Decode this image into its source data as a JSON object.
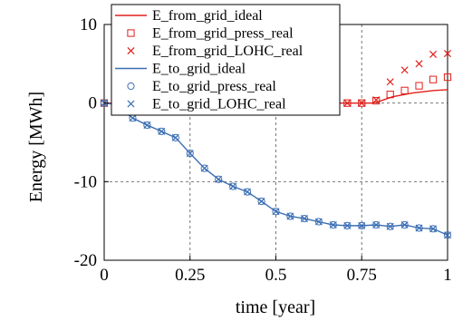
{
  "chart_data": {
    "type": "line",
    "xlabel": "time [year]",
    "ylabel": "Energy [MWh]",
    "xlim": [
      0,
      1
    ],
    "ylim": [
      -20,
      10
    ],
    "xticks": [
      0,
      0.25,
      0.5,
      0.75,
      1
    ],
    "xtick_labels": [
      "0",
      "0.25",
      "0.5",
      "0.75",
      "1"
    ],
    "yticks": [
      -20,
      -10,
      0,
      10
    ],
    "ytick_labels": [
      "-20",
      "-10",
      "0",
      "10"
    ],
    "grid": "dashed at x=0.25,0.5,0.75 and y=-10,0",
    "legend_position": "top-left",
    "colors": {
      "from_grid": "#e0201b",
      "to_grid": "#3c6fb4"
    },
    "series": [
      {
        "name": "E_from_grid_ideal",
        "style": "line",
        "color": "#e0201b",
        "x": [
          0,
          0.1,
          0.2,
          0.3,
          0.4,
          0.5,
          0.6,
          0.7,
          0.78,
          0.8,
          0.84,
          0.9,
          0.96,
          1.0
        ],
        "y": [
          0,
          0,
          0,
          0,
          0,
          0,
          0,
          0,
          0,
          0.2,
          0.8,
          1.3,
          1.6,
          1.7
        ]
      },
      {
        "name": "E_from_grid_press_real",
        "style": "open-square",
        "color": "#e0201b",
        "x": [
          0,
          0.042,
          0.083,
          0.125,
          0.167,
          0.208,
          0.25,
          0.292,
          0.333,
          0.375,
          0.417,
          0.458,
          0.5,
          0.542,
          0.583,
          0.625,
          0.667,
          0.708,
          0.75,
          0.792,
          0.833,
          0.875,
          0.917,
          0.958,
          1.0
        ],
        "y": [
          0,
          0,
          0,
          0,
          0,
          0,
          0,
          0,
          0,
          0,
          0,
          0,
          0,
          0,
          0,
          0,
          0,
          0,
          0,
          0.3,
          1.1,
          1.6,
          2.2,
          3.0,
          3.3
        ]
      },
      {
        "name": "E_from_grid_LOHC_real",
        "style": "x",
        "color": "#e0201b",
        "x": [
          0,
          0.042,
          0.083,
          0.125,
          0.167,
          0.208,
          0.25,
          0.292,
          0.333,
          0.375,
          0.417,
          0.458,
          0.5,
          0.542,
          0.583,
          0.625,
          0.667,
          0.708,
          0.75,
          0.792,
          0.833,
          0.875,
          0.917,
          0.958,
          1.0
        ],
        "y": [
          0,
          0,
          0,
          0,
          0,
          0,
          0,
          0,
          0,
          0,
          0,
          0,
          0,
          0,
          0,
          0,
          0,
          0,
          0,
          0.4,
          2.7,
          4.2,
          5.0,
          6.2,
          6.3
        ]
      },
      {
        "name": "E_to_grid_ideal",
        "style": "line",
        "color": "#3c6fb4",
        "x": [
          0,
          0.02,
          0.042,
          0.083,
          0.125,
          0.167,
          0.208,
          0.25,
          0.292,
          0.333,
          0.375,
          0.417,
          0.458,
          0.5,
          0.542,
          0.583,
          0.625,
          0.667,
          0.708,
          0.75,
          0.792,
          0.833,
          0.875,
          0.917,
          0.958,
          1.0
        ],
        "y": [
          0,
          -0.1,
          -0.6,
          -1.9,
          -2.8,
          -3.6,
          -4.4,
          -6.4,
          -8.3,
          -9.7,
          -10.6,
          -11.3,
          -12.5,
          -13.8,
          -14.4,
          -14.7,
          -15.1,
          -15.5,
          -15.6,
          -15.6,
          -15.5,
          -15.7,
          -15.5,
          -15.9,
          -16.0,
          -16.8
        ]
      },
      {
        "name": "E_to_grid_press_real",
        "style": "open-circle",
        "color": "#3c6fb4",
        "x": [
          0,
          0.042,
          0.083,
          0.125,
          0.167,
          0.208,
          0.25,
          0.292,
          0.333,
          0.375,
          0.417,
          0.458,
          0.5,
          0.542,
          0.583,
          0.625,
          0.667,
          0.708,
          0.75,
          0.792,
          0.833,
          0.875,
          0.917,
          0.958,
          1.0
        ],
        "y": [
          0,
          -0.6,
          -1.9,
          -2.8,
          -3.6,
          -4.4,
          -6.4,
          -8.3,
          -9.7,
          -10.6,
          -11.3,
          -12.5,
          -13.8,
          -14.4,
          -14.7,
          -15.1,
          -15.5,
          -15.6,
          -15.6,
          -15.5,
          -15.7,
          -15.5,
          -15.9,
          -16.0,
          -16.8
        ]
      },
      {
        "name": "E_to_grid_LOHC_real",
        "style": "x",
        "color": "#3c6fb4",
        "x": [
          0,
          0.042,
          0.083,
          0.125,
          0.167,
          0.208,
          0.25,
          0.292,
          0.333,
          0.375,
          0.417,
          0.458,
          0.5,
          0.542,
          0.583,
          0.625,
          0.667,
          0.708,
          0.75,
          0.792,
          0.833,
          0.875,
          0.917,
          0.958,
          1.0
        ],
        "y": [
          0,
          -0.6,
          -1.9,
          -2.8,
          -3.6,
          -4.4,
          -6.4,
          -8.3,
          -9.7,
          -10.6,
          -11.3,
          -12.5,
          -13.8,
          -14.4,
          -14.7,
          -15.1,
          -15.5,
          -15.6,
          -15.6,
          -15.5,
          -15.7,
          -15.5,
          -15.9,
          -16.0,
          -16.8
        ]
      }
    ]
  }
}
